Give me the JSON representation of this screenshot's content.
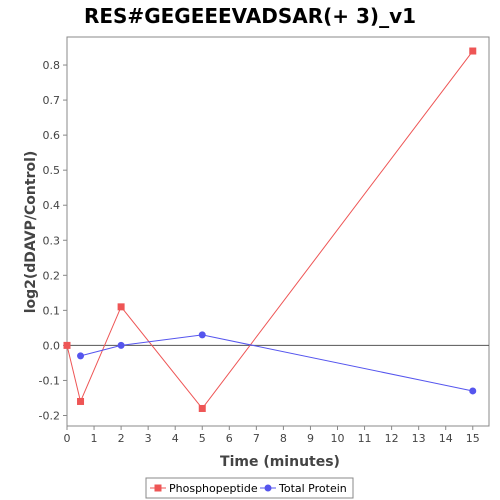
{
  "chart_data": {
    "type": "line",
    "title": "RES#GEGEEEVADSAR(+ 3)_v1",
    "xlabel": "Time (minutes)",
    "ylabel": "log2(dDAVP/Control)",
    "xlim": [
      0,
      15.6
    ],
    "ylim": [
      -0.23,
      0.88
    ],
    "x_ticks": [
      0,
      1,
      2,
      3,
      4,
      5,
      6,
      7,
      8,
      9,
      10,
      11,
      12,
      13,
      14,
      15
    ],
    "y_ticks": [
      -0.2,
      -0.1,
      0.0,
      0.1,
      0.2,
      0.3,
      0.4,
      0.5,
      0.6,
      0.7,
      0.8
    ],
    "grid": false,
    "legend_position": "bottom",
    "series": [
      {
        "name": "Phosphopeptide",
        "color": "#ee5555",
        "marker": "square",
        "x": [
          0,
          0.5,
          2,
          5,
          15
        ],
        "y": [
          0.0,
          -0.16,
          0.11,
          -0.18,
          0.84
        ]
      },
      {
        "name": "Total Protein",
        "color": "#5555ee",
        "marker": "circle",
        "x": [
          0.5,
          2,
          5,
          15
        ],
        "y": [
          -0.03,
          0.0,
          0.03,
          -0.13
        ]
      }
    ]
  }
}
